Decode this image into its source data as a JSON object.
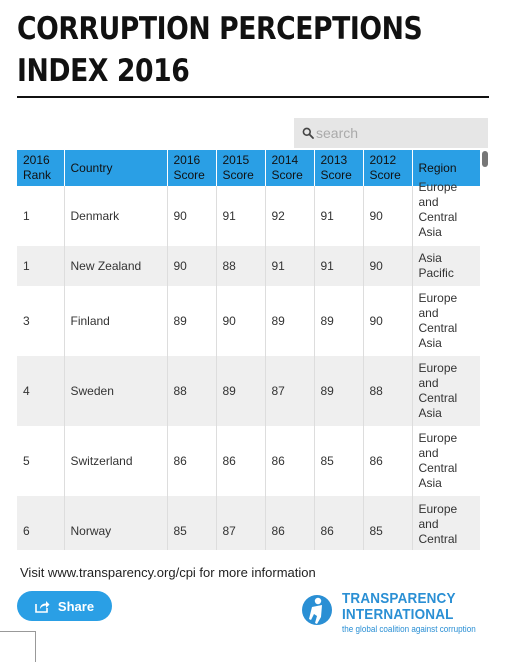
{
  "title": {
    "line1": "CORRUPTION PERCEPTIONS",
    "line2": "INDEX 2016"
  },
  "search": {
    "placeholder": "search",
    "value": ""
  },
  "table": {
    "columns": [
      {
        "line1": "2016",
        "line2": "Rank"
      },
      {
        "line1": "Country",
        "line2": ""
      },
      {
        "line1": "2016",
        "line2": "Score"
      },
      {
        "line1": "2015",
        "line2": "Score"
      },
      {
        "line1": "2014",
        "line2": "Score"
      },
      {
        "line1": "2013",
        "line2": "Score"
      },
      {
        "line1": "2012",
        "line2": "Score"
      },
      {
        "line1": "Region",
        "line2": ""
      }
    ],
    "rows": [
      {
        "rank": "1",
        "country": "Denmark",
        "s2016": "90",
        "s2015": "91",
        "s2014": "92",
        "s2013": "91",
        "s2012": "90",
        "region": [
          "Europe",
          "and",
          "Central",
          "Asia"
        ]
      },
      {
        "rank": "1",
        "country": "New Zealand",
        "s2016": "90",
        "s2015": "88",
        "s2014": "91",
        "s2013": "91",
        "s2012": "90",
        "region": [
          "Asia",
          "Pacific"
        ]
      },
      {
        "rank": "3",
        "country": "Finland",
        "s2016": "89",
        "s2015": "90",
        "s2014": "89",
        "s2013": "89",
        "s2012": "90",
        "region": [
          "Europe",
          "and",
          "Central",
          "Asia"
        ]
      },
      {
        "rank": "4",
        "country": "Sweden",
        "s2016": "88",
        "s2015": "89",
        "s2014": "87",
        "s2013": "89",
        "s2012": "88",
        "region": [
          "Europe",
          "and",
          "Central",
          "Asia"
        ]
      },
      {
        "rank": "5",
        "country": "Switzerland",
        "s2016": "86",
        "s2015": "86",
        "s2014": "86",
        "s2013": "85",
        "s2012": "86",
        "region": [
          "Europe",
          "and",
          "Central",
          "Asia"
        ]
      },
      {
        "rank": "6",
        "country": "Norway",
        "s2016": "85",
        "s2015": "87",
        "s2014": "86",
        "s2013": "86",
        "s2012": "85",
        "region": [
          "Europe",
          "and",
          "Central"
        ]
      }
    ]
  },
  "footer": {
    "info_text": "Visit www.transparency.org/cpi for more information",
    "share_label": "Share"
  },
  "logo": {
    "name_line1": "TRANSPARENCY",
    "name_line2": "INTERNATIONAL",
    "tagline": "the global coalition against corruption"
  },
  "colors": {
    "accent": "#2a9fe5",
    "logo": "#2a8fd4",
    "row_alt": "#efefef"
  }
}
